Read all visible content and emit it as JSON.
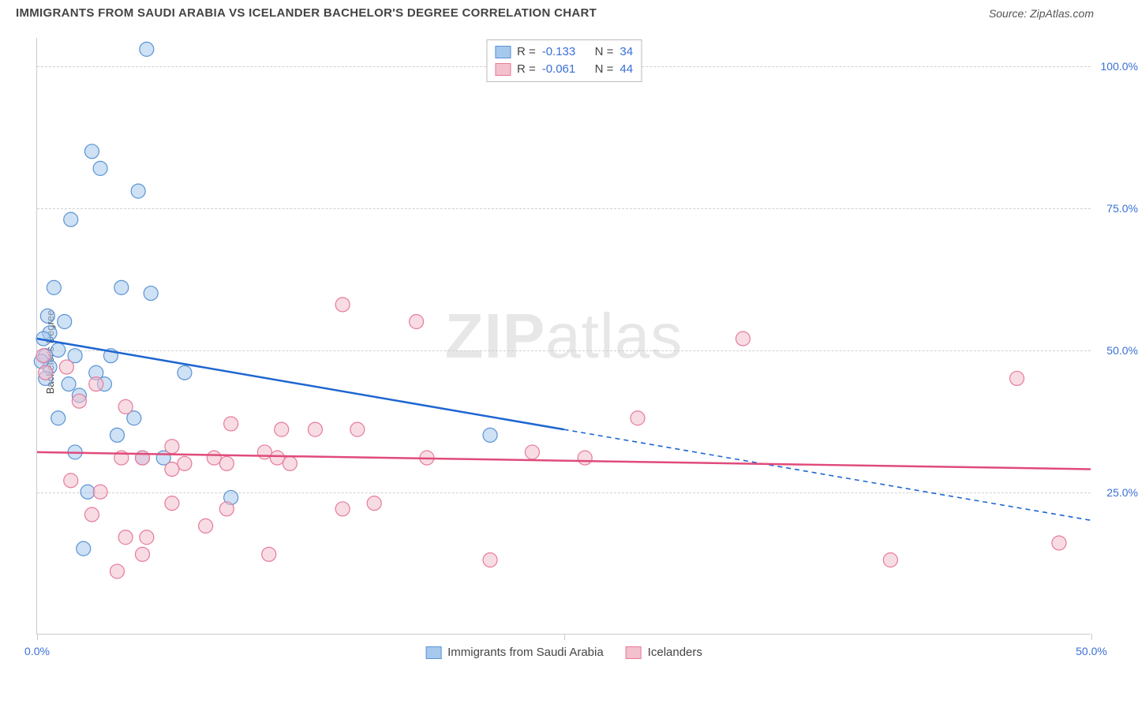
{
  "header": {
    "title": "IMMIGRANTS FROM SAUDI ARABIA VS ICELANDER BACHELOR'S DEGREE CORRELATION CHART",
    "source_prefix": "Source: ",
    "source": "ZipAtlas.com"
  },
  "y_axis_label": "Bachelor's Degree",
  "watermark": "ZIPatlas",
  "chart": {
    "type": "scatter",
    "background_color": "#ffffff",
    "grid_color": "#d0d0d0",
    "xlim": [
      0,
      50
    ],
    "ylim": [
      0,
      105
    ],
    "x_ticks": [
      0.0,
      25.0,
      50.0
    ],
    "x_tick_labels": [
      "0.0%",
      "",
      "50.0%"
    ],
    "y_ticks": [
      25.0,
      50.0,
      75.0,
      100.0
    ],
    "y_tick_labels": [
      "25.0%",
      "50.0%",
      "75.0%",
      "100.0%"
    ],
    "marker_radius": 9,
    "marker_stroke_width": 1.2,
    "trend_line_width": 2.5,
    "trend_dash": "6 5",
    "series": [
      {
        "name": "Immigrants from Saudi Arabia",
        "fill_color": "#a6c8ec",
        "stroke_color": "#5a93d4",
        "line_color": "#1e66d0",
        "fill_opacity": 0.55,
        "stats": {
          "r_label": "R =",
          "r_value": "-0.133",
          "n_label": "N =",
          "n_value": "34"
        },
        "trend_solid": {
          "x1": 0,
          "y1": 52,
          "x2": 25,
          "y2": 36
        },
        "trend_dashed": {
          "x1": 25,
          "y1": 36,
          "x2": 50,
          "y2": 20
        },
        "points": [
          [
            5.2,
            103
          ],
          [
            2.6,
            85
          ],
          [
            3.0,
            82
          ],
          [
            4.8,
            78
          ],
          [
            1.6,
            73
          ],
          [
            4.0,
            61
          ],
          [
            5.4,
            60
          ],
          [
            0.8,
            61
          ],
          [
            0.5,
            56
          ],
          [
            0.6,
            53
          ],
          [
            1.3,
            55
          ],
          [
            1.0,
            50
          ],
          [
            0.4,
            49
          ],
          [
            0.6,
            47
          ],
          [
            1.8,
            49
          ],
          [
            3.5,
            49
          ],
          [
            0.4,
            45
          ],
          [
            2.8,
            46
          ],
          [
            3.2,
            44
          ],
          [
            7.0,
            46
          ],
          [
            1.0,
            38
          ],
          [
            4.6,
            38
          ],
          [
            1.8,
            32
          ],
          [
            21.5,
            35
          ],
          [
            2.4,
            25
          ],
          [
            9.2,
            24
          ],
          [
            5.0,
            31
          ],
          [
            2.2,
            15
          ],
          [
            6.0,
            31
          ],
          [
            0.2,
            48
          ],
          [
            0.3,
            52
          ],
          [
            1.5,
            44
          ],
          [
            2.0,
            42
          ],
          [
            3.8,
            35
          ]
        ]
      },
      {
        "name": "Icelanders",
        "fill_color": "#f3c0cd",
        "stroke_color": "#e77a9a",
        "line_color": "#e04b7a",
        "fill_opacity": 0.55,
        "stats": {
          "r_label": "R =",
          "r_value": "-0.061",
          "n_label": "N =",
          "n_value": "44"
        },
        "trend_solid": {
          "x1": 0,
          "y1": 32,
          "x2": 50,
          "y2": 29
        },
        "trend_dashed": null,
        "points": [
          [
            0.3,
            49
          ],
          [
            0.4,
            46
          ],
          [
            1.4,
            47
          ],
          [
            2.8,
            44
          ],
          [
            14.5,
            58
          ],
          [
            18.0,
            55
          ],
          [
            2.0,
            41
          ],
          [
            4.2,
            40
          ],
          [
            4.0,
            31
          ],
          [
            5.0,
            31
          ],
          [
            6.4,
            29
          ],
          [
            7.0,
            30
          ],
          [
            6.4,
            33
          ],
          [
            8.4,
            31
          ],
          [
            9.2,
            37
          ],
          [
            9.0,
            30
          ],
          [
            10.8,
            32
          ],
          [
            11.4,
            31
          ],
          [
            11.6,
            36
          ],
          [
            12.0,
            30
          ],
          [
            13.2,
            36
          ],
          [
            15.2,
            36
          ],
          [
            16.0,
            23
          ],
          [
            18.5,
            31
          ],
          [
            23.5,
            32
          ],
          [
            26.0,
            31
          ],
          [
            28.5,
            38
          ],
          [
            33.5,
            52
          ],
          [
            46.5,
            45
          ],
          [
            48.5,
            16
          ],
          [
            40.5,
            13
          ],
          [
            21.5,
            13
          ],
          [
            11.0,
            14
          ],
          [
            8.0,
            19
          ],
          [
            5.0,
            14
          ],
          [
            4.2,
            17
          ],
          [
            3.0,
            25
          ],
          [
            1.6,
            27
          ],
          [
            2.6,
            21
          ],
          [
            3.8,
            11
          ],
          [
            5.2,
            17
          ],
          [
            6.4,
            23
          ],
          [
            9.0,
            22
          ],
          [
            14.5,
            22
          ]
        ]
      }
    ]
  }
}
